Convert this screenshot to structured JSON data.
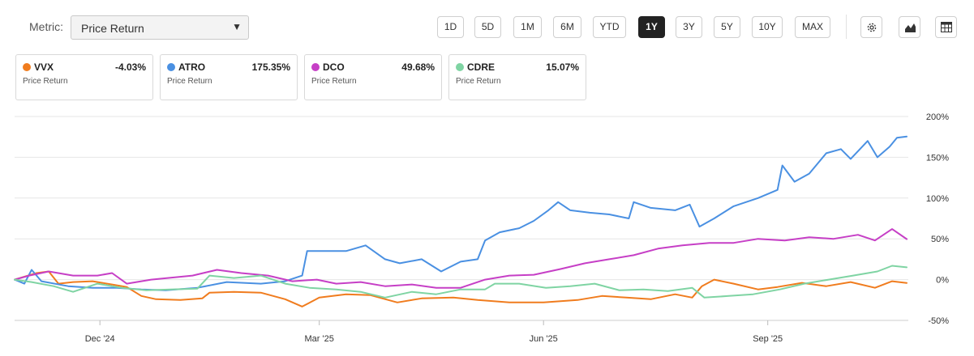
{
  "metric": {
    "label": "Metric:",
    "value": "Price Return"
  },
  "ranges": [
    {
      "label": "1D",
      "active": false
    },
    {
      "label": "5D",
      "active": false
    },
    {
      "label": "1M",
      "active": false
    },
    {
      "label": "6M",
      "active": false
    },
    {
      "label": "YTD",
      "active": false
    },
    {
      "label": "1Y",
      "active": true
    },
    {
      "label": "3Y",
      "active": false
    },
    {
      "label": "5Y",
      "active": false
    },
    {
      "label": "10Y",
      "active": false
    },
    {
      "label": "MAX",
      "active": false
    }
  ],
  "tools": [
    {
      "name": "settings-button",
      "icon": "gear-icon"
    },
    {
      "name": "chart-type-button",
      "icon": "area-chart-icon"
    },
    {
      "name": "table-view-button",
      "icon": "table-icon"
    }
  ],
  "cards": [
    {
      "ticker": "VVX",
      "change": "-4.03%",
      "metric": "Price Return",
      "color": "#f07c1e"
    },
    {
      "ticker": "ATRO",
      "change": "175.35%",
      "metric": "Price Return",
      "color": "#4a90e2"
    },
    {
      "ticker": "DCO",
      "change": "49.68%",
      "metric": "Price Return",
      "color": "#c63fc6"
    },
    {
      "ticker": "CDRE",
      "change": "15.07%",
      "metric": "Price Return",
      "color": "#7fd4a3"
    }
  ],
  "chart_data": {
    "type": "line",
    "ylim": [
      -50,
      200
    ],
    "y_ticks": [
      200,
      150,
      100,
      50,
      0,
      -50
    ],
    "y_tick_labels": [
      "200%",
      "150%",
      "100%",
      "50%",
      "0%",
      "-50%"
    ],
    "x_range": [
      "2024-10-27",
      "2025-10-28"
    ],
    "x_ticks": [
      {
        "date": "2024-12-01",
        "label": "Dec '24"
      },
      {
        "date": "2025-03-01",
        "label": "Mar '25"
      },
      {
        "date": "2025-06-01",
        "label": "Jun '25"
      },
      {
        "date": "2025-09-01",
        "label": "Sep '25"
      }
    ],
    "grid": true,
    "series": [
      {
        "name": "VVX",
        "color": "#f07c1e",
        "points": [
          [
            "2024-10-27",
            0
          ],
          [
            "2024-11-05",
            8
          ],
          [
            "2024-11-10",
            10
          ],
          [
            "2024-11-14",
            -5
          ],
          [
            "2024-11-20",
            -3
          ],
          [
            "2024-11-28",
            -2
          ],
          [
            "2024-12-06",
            -6
          ],
          [
            "2024-12-12",
            -9
          ],
          [
            "2024-12-18",
            -20
          ],
          [
            "2024-12-24",
            -24
          ],
          [
            "2025-01-03",
            -25
          ],
          [
            "2025-01-12",
            -23
          ],
          [
            "2025-01-15",
            -16
          ],
          [
            "2025-01-25",
            -15
          ],
          [
            "2025-02-05",
            -16
          ],
          [
            "2025-02-15",
            -24
          ],
          [
            "2025-02-22",
            -33
          ],
          [
            "2025-03-01",
            -22
          ],
          [
            "2025-03-12",
            -18
          ],
          [
            "2025-03-22",
            -19
          ],
          [
            "2025-04-02",
            -28
          ],
          [
            "2025-04-12",
            -23
          ],
          [
            "2025-04-25",
            -22
          ],
          [
            "2025-05-05",
            -25
          ],
          [
            "2025-05-18",
            -28
          ],
          [
            "2025-06-01",
            -28
          ],
          [
            "2025-06-15",
            -25
          ],
          [
            "2025-06-25",
            -20
          ],
          [
            "2025-07-05",
            -22
          ],
          [
            "2025-07-15",
            -24
          ],
          [
            "2025-07-25",
            -18
          ],
          [
            "2025-08-01",
            -22
          ],
          [
            "2025-08-05",
            -8
          ],
          [
            "2025-08-10",
            0
          ],
          [
            "2025-08-18",
            -5
          ],
          [
            "2025-08-28",
            -12
          ],
          [
            "2025-09-05",
            -9
          ],
          [
            "2025-09-15",
            -4
          ],
          [
            "2025-09-25",
            -8
          ],
          [
            "2025-10-05",
            -3
          ],
          [
            "2025-10-15",
            -10
          ],
          [
            "2025-10-22",
            -2
          ],
          [
            "2025-10-28",
            -4.03
          ]
        ]
      },
      {
        "name": "ATRO",
        "color": "#4a90e2",
        "points": [
          [
            "2024-10-27",
            0
          ],
          [
            "2024-10-31",
            -5
          ],
          [
            "2024-11-03",
            12
          ],
          [
            "2024-11-07",
            -2
          ],
          [
            "2024-11-18",
            -8
          ],
          [
            "2024-11-28",
            -10
          ],
          [
            "2024-12-08",
            -10
          ],
          [
            "2024-12-18",
            -12
          ],
          [
            "2024-12-28",
            -13
          ],
          [
            "2025-01-10",
            -10
          ],
          [
            "2025-01-22",
            -3
          ],
          [
            "2025-02-05",
            -5
          ],
          [
            "2025-02-15",
            -2
          ],
          [
            "2025-02-22",
            5
          ],
          [
            "2025-02-24",
            35
          ],
          [
            "2025-03-05",
            35
          ],
          [
            "2025-03-12",
            35
          ],
          [
            "2025-03-20",
            42
          ],
          [
            "2025-03-28",
            25
          ],
          [
            "2025-04-03",
            20
          ],
          [
            "2025-04-12",
            25
          ],
          [
            "2025-04-20",
            10
          ],
          [
            "2025-04-28",
            22
          ],
          [
            "2025-05-05",
            25
          ],
          [
            "2025-05-08",
            48
          ],
          [
            "2025-05-14",
            58
          ],
          [
            "2025-05-22",
            63
          ],
          [
            "2025-05-28",
            72
          ],
          [
            "2025-06-03",
            85
          ],
          [
            "2025-06-07",
            95
          ],
          [
            "2025-06-12",
            85
          ],
          [
            "2025-06-20",
            82
          ],
          [
            "2025-06-28",
            80
          ],
          [
            "2025-07-06",
            75
          ],
          [
            "2025-07-08",
            95
          ],
          [
            "2025-07-15",
            88
          ],
          [
            "2025-07-25",
            85
          ],
          [
            "2025-07-31",
            92
          ],
          [
            "2025-08-04",
            65
          ],
          [
            "2025-08-10",
            75
          ],
          [
            "2025-08-18",
            90
          ],
          [
            "2025-08-28",
            100
          ],
          [
            "2025-09-05",
            110
          ],
          [
            "2025-09-07",
            140
          ],
          [
            "2025-09-12",
            120
          ],
          [
            "2025-09-18",
            130
          ],
          [
            "2025-09-25",
            155
          ],
          [
            "2025-10-01",
            160
          ],
          [
            "2025-10-05",
            148
          ],
          [
            "2025-10-12",
            170
          ],
          [
            "2025-10-16",
            150
          ],
          [
            "2025-10-21",
            163
          ],
          [
            "2025-10-24",
            174
          ],
          [
            "2025-10-28",
            175.35
          ]
        ]
      },
      {
        "name": "DCO",
        "color": "#c63fc6",
        "points": [
          [
            "2024-10-27",
            0
          ],
          [
            "2024-11-02",
            5
          ],
          [
            "2024-11-10",
            10
          ],
          [
            "2024-11-20",
            5
          ],
          [
            "2024-11-30",
            5
          ],
          [
            "2024-12-06",
            8
          ],
          [
            "2024-12-12",
            -5
          ],
          [
            "2024-12-22",
            0
          ],
          [
            "2025-01-08",
            5
          ],
          [
            "2025-01-18",
            12
          ],
          [
            "2025-01-28",
            8
          ],
          [
            "2025-02-08",
            5
          ],
          [
            "2025-02-18",
            -2
          ],
          [
            "2025-02-28",
            0
          ],
          [
            "2025-03-08",
            -5
          ],
          [
            "2025-03-18",
            -3
          ],
          [
            "2025-03-28",
            -8
          ],
          [
            "2025-04-08",
            -6
          ],
          [
            "2025-04-18",
            -10
          ],
          [
            "2025-04-28",
            -10
          ],
          [
            "2025-05-08",
            0
          ],
          [
            "2025-05-18",
            5
          ],
          [
            "2025-05-28",
            6
          ],
          [
            "2025-06-08",
            13
          ],
          [
            "2025-06-18",
            20
          ],
          [
            "2025-06-28",
            25
          ],
          [
            "2025-07-08",
            30
          ],
          [
            "2025-07-18",
            38
          ],
          [
            "2025-07-28",
            42
          ],
          [
            "2025-08-08",
            45
          ],
          [
            "2025-08-18",
            45
          ],
          [
            "2025-08-28",
            50
          ],
          [
            "2025-09-08",
            48
          ],
          [
            "2025-09-18",
            52
          ],
          [
            "2025-09-28",
            50
          ],
          [
            "2025-10-08",
            55
          ],
          [
            "2025-10-15",
            48
          ],
          [
            "2025-10-22",
            62
          ],
          [
            "2025-10-28",
            49.68
          ]
        ]
      },
      {
        "name": "CDRE",
        "color": "#7fd4a3",
        "points": [
          [
            "2024-10-27",
            0
          ],
          [
            "2024-11-03",
            -3
          ],
          [
            "2024-11-12",
            -8
          ],
          [
            "2024-11-20",
            -15
          ],
          [
            "2024-11-30",
            -5
          ],
          [
            "2024-12-10",
            -10
          ],
          [
            "2024-12-20",
            -13
          ],
          [
            "2024-12-30",
            -12
          ],
          [
            "2025-01-10",
            -11
          ],
          [
            "2025-01-15",
            5
          ],
          [
            "2025-01-25",
            2
          ],
          [
            "2025-02-05",
            5
          ],
          [
            "2025-02-15",
            -5
          ],
          [
            "2025-02-25",
            -10
          ],
          [
            "2025-03-08",
            -12
          ],
          [
            "2025-03-18",
            -15
          ],
          [
            "2025-03-28",
            -22
          ],
          [
            "2025-04-08",
            -15
          ],
          [
            "2025-04-18",
            -18
          ],
          [
            "2025-04-28",
            -12
          ],
          [
            "2025-05-08",
            -12
          ],
          [
            "2025-05-12",
            -5
          ],
          [
            "2025-05-22",
            -5
          ],
          [
            "2025-06-02",
            -10
          ],
          [
            "2025-06-12",
            -8
          ],
          [
            "2025-06-22",
            -5
          ],
          [
            "2025-07-02",
            -13
          ],
          [
            "2025-07-12",
            -12
          ],
          [
            "2025-07-22",
            -14
          ],
          [
            "2025-08-01",
            -10
          ],
          [
            "2025-08-06",
            -22
          ],
          [
            "2025-08-16",
            -20
          ],
          [
            "2025-08-26",
            -18
          ],
          [
            "2025-09-06",
            -12
          ],
          [
            "2025-09-16",
            -5
          ],
          [
            "2025-09-26",
            0
          ],
          [
            "2025-10-06",
            5
          ],
          [
            "2025-10-16",
            10
          ],
          [
            "2025-10-22",
            17
          ],
          [
            "2025-10-28",
            15.07
          ]
        ]
      }
    ]
  }
}
